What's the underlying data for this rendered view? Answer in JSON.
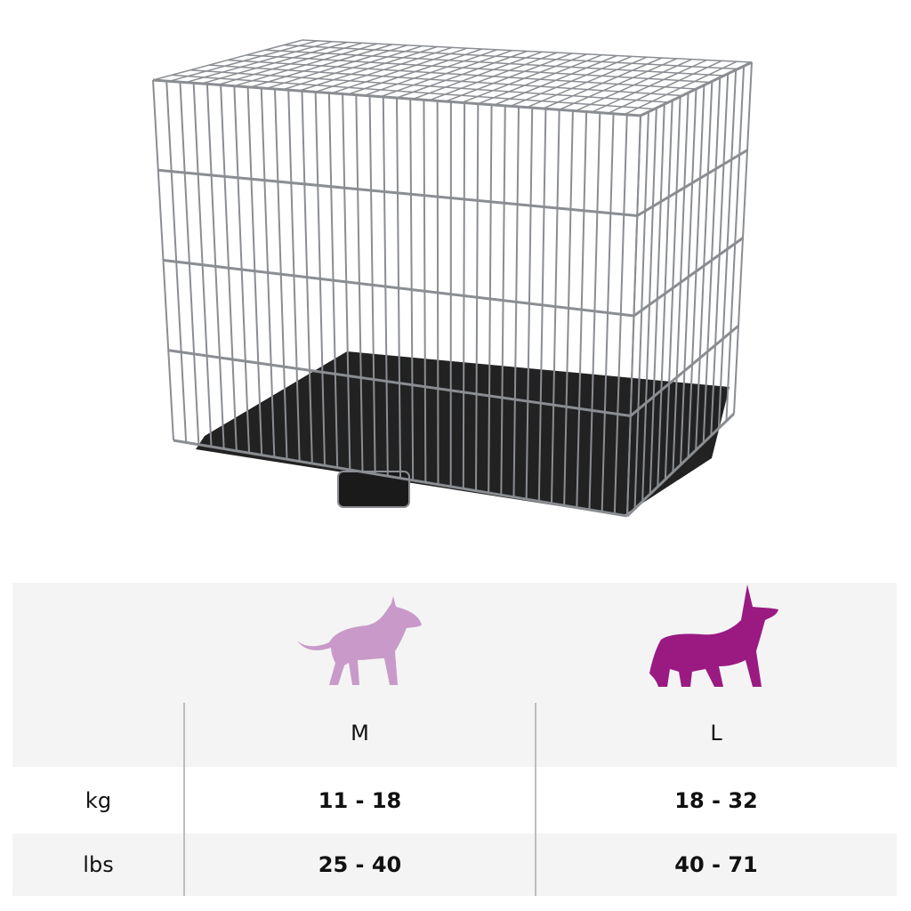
{
  "product_image": {
    "icon": "dog-crate-image"
  },
  "size_table": {
    "colors": {
      "medium_dog": "#c99ac9",
      "large_dog": "#9a1a82",
      "header_bg": "#f4f4f4"
    },
    "columns": [
      {
        "size": "M",
        "icon": "medium-dog-icon"
      },
      {
        "size": "L",
        "icon": "large-dog-icon"
      }
    ],
    "rows": [
      {
        "unit": "kg",
        "values": [
          "11 - 18",
          "18 - 32"
        ]
      },
      {
        "unit": "lbs",
        "values": [
          "25 - 40",
          "40 - 71"
        ]
      }
    ]
  }
}
